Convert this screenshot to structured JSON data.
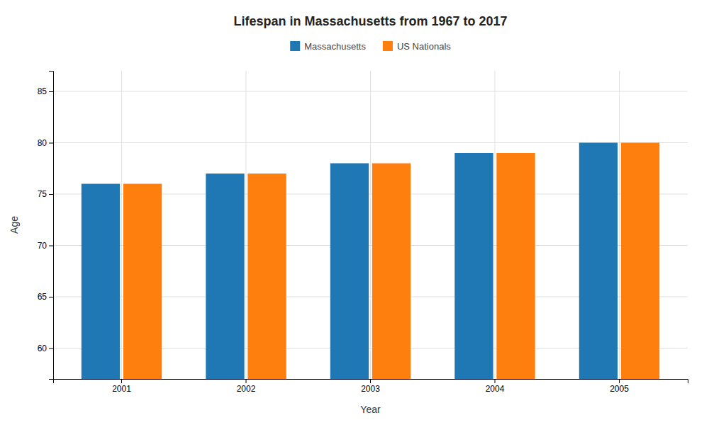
{
  "chart_data": {
    "type": "bar",
    "title": "Lifespan in Massachusetts from 1967 to 2017",
    "xlabel": "Year",
    "ylabel": "Age",
    "categories": [
      "2001",
      "2002",
      "2003",
      "2004",
      "2005"
    ],
    "series": [
      {
        "name": "Massachusetts",
        "values": [
          76,
          77,
          78,
          79,
          80
        ]
      },
      {
        "name": "US Nationals",
        "values": [
          76,
          77,
          78,
          79,
          80
        ]
      }
    ],
    "ylim": [
      57,
      87
    ],
    "yticks": [
      60,
      65,
      70,
      75,
      80,
      85
    ],
    "grid": true,
    "legend": "top"
  }
}
